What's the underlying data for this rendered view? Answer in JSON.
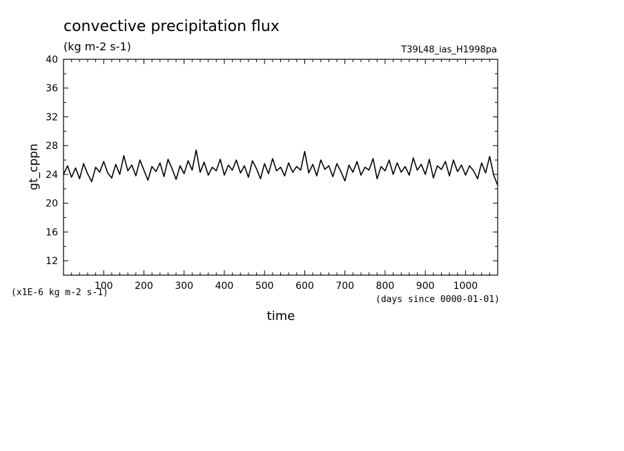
{
  "chart_data": {
    "type": "line",
    "title": "convective precipitation flux",
    "subtitle": "(kg m-2 s-1)",
    "run_label": "T39L48_ias_H1998pa",
    "ylabel": "gt_cppn",
    "xlabel": "time",
    "x_units": "(days since 0000-01-01)",
    "y_scale_note": "(x1E-6 kg m-2 s-1)",
    "xlim": [
      0,
      1080
    ],
    "ylim": [
      10,
      40
    ],
    "x_ticks": [
      100,
      200,
      300,
      400,
      500,
      600,
      700,
      800,
      900,
      1000
    ],
    "y_ticks": [
      12,
      16,
      20,
      24,
      28,
      32,
      36,
      40
    ],
    "grid": false,
    "series": [
      {
        "x": [
          0,
          10,
          20,
          30,
          40,
          50,
          60,
          70,
          80,
          90,
          100,
          110,
          120,
          130,
          140,
          150,
          160,
          170,
          180,
          190,
          200,
          210,
          220,
          230,
          240,
          250,
          260,
          270,
          280,
          290,
          300,
          310,
          320,
          330,
          340,
          350,
          360,
          370,
          380,
          390,
          400,
          410,
          420,
          430,
          440,
          450,
          460,
          470,
          480,
          490,
          500,
          510,
          520,
          530,
          540,
          550,
          560,
          570,
          580,
          590,
          600,
          610,
          620,
          630,
          640,
          650,
          660,
          670,
          680,
          690,
          700,
          710,
          720,
          730,
          740,
          750,
          760,
          770,
          780,
          790,
          800,
          810,
          820,
          830,
          840,
          850,
          860,
          870,
          880,
          890,
          900,
          910,
          920,
          930,
          940,
          950,
          960,
          970,
          980,
          990,
          1000,
          1010,
          1020,
          1030,
          1040,
          1050,
          1060,
          1070,
          1080
        ],
        "values": [
          24.0,
          25.2,
          23.6,
          24.9,
          23.4,
          25.5,
          24.1,
          23.0,
          25.0,
          24.3,
          25.8,
          24.2,
          23.5,
          25.4,
          24.0,
          26.6,
          24.5,
          25.3,
          23.8,
          26.0,
          24.6,
          23.2,
          25.1,
          24.4,
          25.6,
          23.7,
          26.1,
          24.8,
          23.3,
          25.2,
          24.1,
          25.9,
          24.6,
          27.4,
          24.3,
          25.7,
          23.9,
          25.0,
          24.5,
          26.1,
          23.9,
          25.3,
          24.6,
          26.0,
          24.2,
          25.2,
          23.6,
          25.9,
          24.8,
          23.4,
          25.5,
          24.1,
          26.2,
          24.5,
          25.0,
          23.8,
          25.6,
          24.3,
          25.1,
          24.6,
          27.2,
          24.2,
          25.4,
          23.8,
          26.0,
          24.7,
          25.2,
          23.7,
          25.5,
          24.4,
          23.1,
          25.3,
          24.3,
          25.8,
          23.9,
          25.0,
          24.6,
          26.2,
          23.4,
          25.1,
          24.5,
          26.0,
          24.0,
          25.6,
          24.3,
          25.1,
          23.9,
          26.3,
          24.6,
          25.4,
          24.0,
          26.1,
          23.5,
          25.2,
          24.7,
          25.8,
          23.8,
          26.0,
          24.4,
          25.3,
          23.9,
          25.2,
          24.5,
          23.4,
          25.6,
          24.2,
          26.5,
          23.9,
          22.5
        ]
      }
    ]
  }
}
